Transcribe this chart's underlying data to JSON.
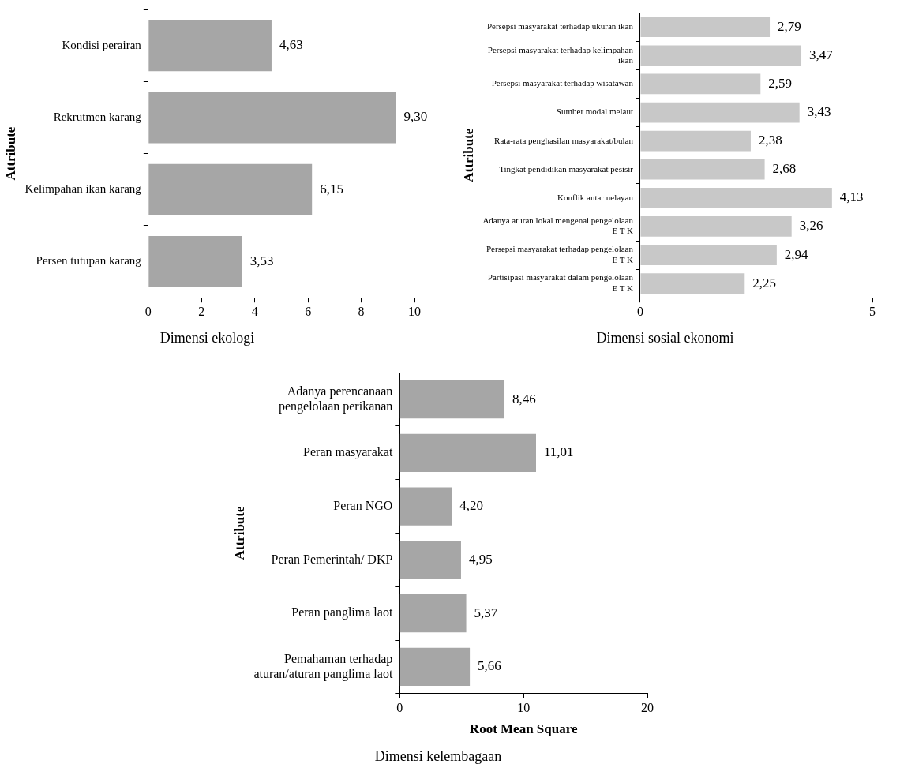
{
  "chart_data": [
    {
      "type": "bar",
      "orientation": "horizontal",
      "title": "Dimensi ekologi",
      "ylabel": "Attribute",
      "categories": [
        "Kondisi perairan",
        "Rekrutmen karang",
        "Kelimpahan ikan karang",
        "Persen tutupan karang"
      ],
      "values": [
        4.63,
        9.3,
        6.15,
        3.53
      ],
      "value_labels": [
        "4,63",
        "9,30",
        "6,15",
        "3,53"
      ],
      "color": "#a6a6a6",
      "xlim": [
        0,
        10
      ],
      "xticks": [
        0,
        2,
        4,
        6,
        8,
        10
      ],
      "grid": false,
      "legend": false
    },
    {
      "type": "bar",
      "orientation": "horizontal",
      "title": "Dimensi sosial ekonomi",
      "ylabel": "Attribute",
      "categories": [
        "Persepsi masyarakat terhadap ukuran ikan",
        "Persepsi masyarakat terhadap kelimpahan\nikan",
        "Persepsi masyarakat terhadap wisatawan",
        "Sumber modal melaut",
        "Rata-rata penghasilan masyarakat/bulan",
        "Tingkat pendidikan masyarakat pesisir",
        "Konflik antar nelayan",
        "Adanya aturan lokal mengenai pengelolaan\nE T K",
        "Persepsi masyarakat terhadap pengelolaan\nE T K",
        "Partisipasi masyarakat dalam pengelolaan\nE T K"
      ],
      "values": [
        2.79,
        3.47,
        2.59,
        3.43,
        2.38,
        2.68,
        4.13,
        3.26,
        2.94,
        2.25
      ],
      "value_labels": [
        "2,79",
        "3,47",
        "2,59",
        "3,43",
        "2,38",
        "2,68",
        "4,13",
        "3,26",
        "2,94",
        "2,25"
      ],
      "color": "#c8c8c8",
      "xlim": [
        0,
        5
      ],
      "xticks": [
        0,
        5
      ],
      "grid": false,
      "legend": false
    },
    {
      "type": "bar",
      "orientation": "horizontal",
      "title": "Dimensi kelembagaan",
      "xlabel": "Root Mean Square",
      "ylabel": "Attribute",
      "categories": [
        "Adanya perencanaan\npengelolaan perikanan",
        "Peran masyarakat",
        "Peran NGO",
        "Peran Pemerintah/ DKP",
        "Peran panglima laot",
        "Pemahaman terhadap\naturan/aturan panglima laot"
      ],
      "values": [
        8.46,
        11.01,
        4.2,
        4.95,
        5.37,
        5.66
      ],
      "value_labels": [
        "8,46",
        "11,01",
        "4,20",
        "4,95",
        "5,37",
        "5,66"
      ],
      "color": "#a6a6a6",
      "xlim": [
        0,
        20
      ],
      "xticks": [
        0,
        10,
        20
      ],
      "grid": false,
      "legend": false
    }
  ]
}
